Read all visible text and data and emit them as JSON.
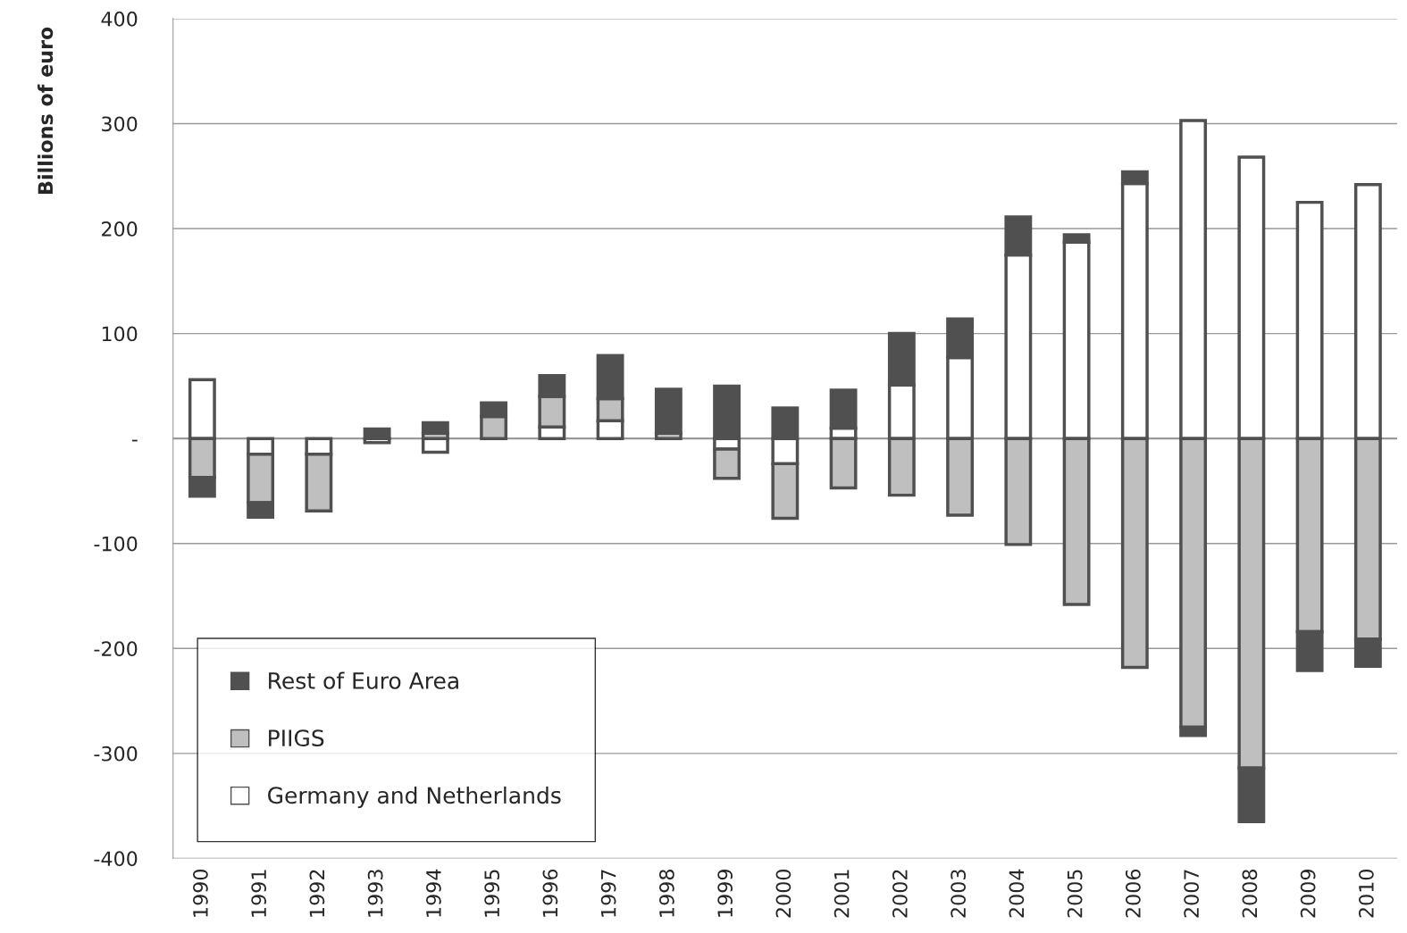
{
  "chart_data": {
    "type": "bar",
    "stacked": true,
    "ylabel": "Billions of euro",
    "categories": [
      "1990",
      "1991",
      "1992",
      "1993",
      "1994",
      "1995",
      "1996",
      "1997",
      "1998",
      "1999",
      "2000",
      "2001",
      "2002",
      "2003",
      "2004",
      "2005",
      "2006",
      "2007",
      "2008",
      "2009",
      "2010"
    ],
    "series": [
      {
        "name": "Germany and Netherlands",
        "color": "#ffffff",
        "values": [
          56,
          -15,
          -15,
          -4,
          -13,
          null,
          11,
          17,
          null,
          -10,
          -24,
          10,
          51,
          77,
          175,
          187,
          243,
          303,
          268,
          225,
          242
        ]
      },
      {
        "name": "PIIGS",
        "color": "#bfbfbf",
        "values": [
          -37,
          -46,
          -54,
          null,
          5,
          21,
          29,
          21,
          5,
          -28,
          -52,
          -47,
          -54,
          -73,
          -101,
          -158,
          -218,
          -275,
          -314,
          -184,
          -191
        ]
      },
      {
        "name": "Rest of Euro Area",
        "color": "#505050",
        "values": [
          -18,
          -14,
          null,
          9,
          10,
          13,
          20,
          41,
          42,
          50,
          29,
          36,
          49,
          37,
          36,
          7,
          11,
          -8,
          -51,
          -37,
          -26
        ]
      }
    ],
    "ylim": [
      -400,
      400
    ],
    "yticks": [
      -400,
      -300,
      -200,
      -100,
      {
        "value": 0,
        "label": "-"
      },
      100,
      200,
      300,
      400
    ],
    "grid": "y",
    "legend": "bottom left"
  }
}
